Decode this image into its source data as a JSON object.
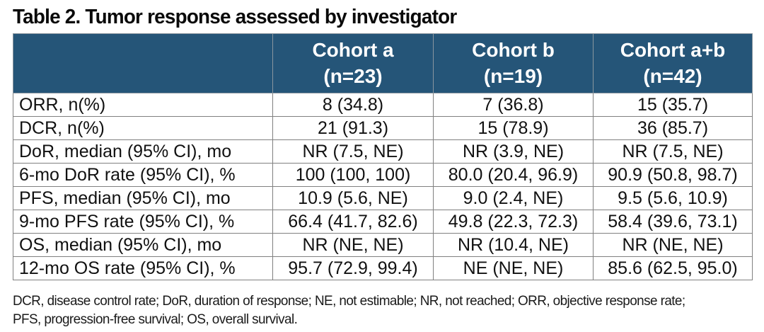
{
  "title": "Table 2. Tumor response assessed by investigator",
  "colors": {
    "header_bg": "#255578",
    "header_text": "#ffffff",
    "border": "#808080",
    "body_text": "#111111"
  },
  "chart_data": {
    "type": "table",
    "title": "Table 2. Tumor response assessed by investigator",
    "columns": [
      "",
      "Cohort a (n=23)",
      "Cohort b (n=19)",
      "Cohort a+b (n=42)"
    ],
    "rows": [
      [
        "ORR, n(%)",
        "8 (34.8)",
        "7 (36.8)",
        "15 (35.7)"
      ],
      [
        "DCR, n(%)",
        "21 (91.3)",
        "15 (78.9)",
        "36 (85.7)"
      ],
      [
        "DoR, median (95% CI), mo",
        "NR (7.5, NE)",
        "NR (3.9, NE)",
        "NR (7.5, NE)"
      ],
      [
        "6-mo DoR rate (95% CI), %",
        "100 (100, 100)",
        "80.0 (20.4, 96.9)",
        "90.9 (50.8, 98.7)"
      ],
      [
        "PFS, median (95% CI), mo",
        "10.9 (5.6, NE)",
        "9.0 (2.4, NE)",
        "9.5 (5.6, 10.9)"
      ],
      [
        "9-mo PFS rate (95% CI), %",
        "66.4 (41.7, 82.6)",
        "49.8 (22.3, 72.3)",
        "58.4 (39.6, 73.1)"
      ],
      [
        "OS, median (95% CI), mo",
        "NR (NE, NE)",
        "NR (10.4, NE)",
        "NR (NE, NE)"
      ],
      [
        "12-mo OS rate (95% CI), %",
        "95.7 (72.9, 99.4)",
        "NE (NE, NE)",
        "85.6 (62.5, 95.0)"
      ]
    ]
  },
  "table": {
    "header": [
      {
        "label": "Cohort a",
        "sub": "(n=23)"
      },
      {
        "label": "Cohort b",
        "sub": "(n=19)"
      },
      {
        "label": "Cohort a+b",
        "sub": "(n=42)"
      }
    ],
    "rows": [
      {
        "label": "ORR, n(%)",
        "a": "8 (34.8)",
        "b": "7 (36.8)",
        "ab": "15 (35.7)"
      },
      {
        "label": "DCR, n(%)",
        "a": "21 (91.3)",
        "b": "15 (78.9)",
        "ab": "36 (85.7)"
      },
      {
        "label": "DoR, median (95% CI), mo",
        "a": "NR (7.5, NE)",
        "b": "NR (3.9, NE)",
        "ab": "NR (7.5, NE)"
      },
      {
        "label": "6-mo DoR rate (95% CI), %",
        "a": "100 (100, 100)",
        "b": "80.0 (20.4, 96.9)",
        "ab": "90.9 (50.8, 98.7)"
      },
      {
        "label": "PFS, median (95% CI), mo",
        "a": "10.9 (5.6, NE)",
        "b": "9.0 (2.4, NE)",
        "ab": "9.5 (5.6, 10.9)"
      },
      {
        "label": "9-mo PFS rate (95% CI), %",
        "a": "66.4 (41.7, 82.6)",
        "b": "49.8 (22.3, 72.3)",
        "ab": "58.4 (39.6, 73.1)"
      },
      {
        "label": "OS, median (95% CI), mo",
        "a": "NR (NE, NE)",
        "b": "NR (10.4, NE)",
        "ab": "NR (NE, NE)"
      },
      {
        "label": "12-mo OS rate (95% CI), %",
        "a": "95.7 (72.9, 99.4)",
        "b": "NE (NE, NE)",
        "ab": "85.6 (62.5, 95.0)"
      }
    ]
  },
  "footnote": {
    "line1": "DCR, disease control rate; DoR, duration of response; NE, not estimable; NR, not reached; ORR, objective response rate;",
    "line2": "PFS, progression-free survival; OS, overall survival."
  }
}
